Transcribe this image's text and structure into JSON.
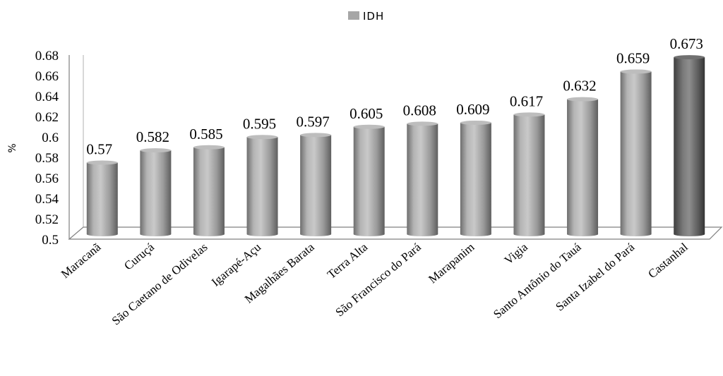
{
  "chart_data": {
    "type": "bar",
    "title": "",
    "xlabel": "",
    "ylabel": "%",
    "ylim": [
      0.5,
      0.68
    ],
    "ytick_step": 0.02,
    "grid": false,
    "legend_position": "top-center",
    "series": [
      {
        "name": "IDH",
        "color": "#a6a6a6",
        "values": [
          0.57,
          0.582,
          0.585,
          0.595,
          0.597,
          0.605,
          0.608,
          0.609,
          0.617,
          0.632,
          0.659,
          0.673
        ]
      }
    ],
    "categories": [
      "Maracanã",
      "Curuçá",
      "São Caetano de Odivelas",
      "Igarapé-Açu",
      "Magalhães Barata",
      "Terra Alta",
      "São Francisco do Pará",
      "Marapanim",
      "Vigia",
      "Santo Antônio do Tauá",
      "Santa Izabel do Pará",
      "Castanhal"
    ],
    "y_tick_labels": [
      "0.5",
      "0.52",
      "0.54",
      "0.56",
      "0.58",
      "0.6",
      "0.62",
      "0.64",
      "0.66",
      "0.68"
    ],
    "data_labels": [
      "0.57",
      "0.582",
      "0.585",
      "0.595",
      "0.597",
      "0.605",
      "0.608",
      "0.609",
      "0.617",
      "0.632",
      "0.659",
      "0.673"
    ]
  }
}
